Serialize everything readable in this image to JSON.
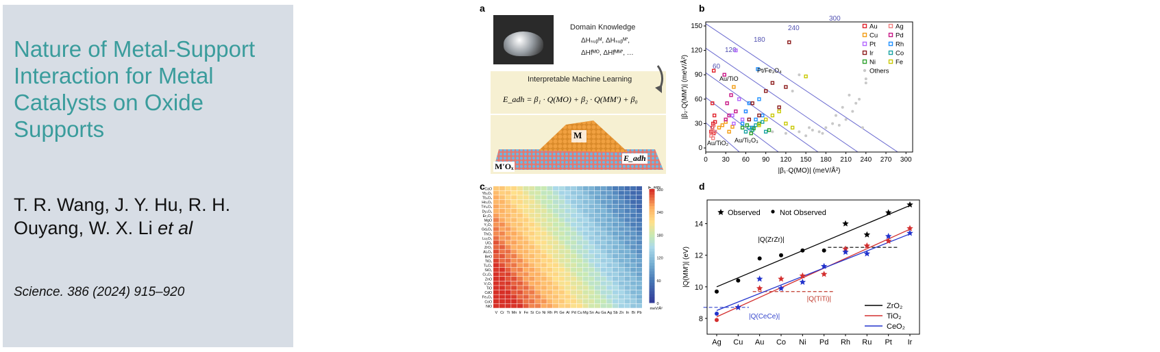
{
  "slide": {
    "title": "Nature of Metal-Support Interaction for Metal Catalysts on Oxide Supports",
    "authors_main": "T. R. Wang, J. Y. Hu, R. H. Ouyang, W. X. Li",
    "authors_etal": "et al",
    "citation": "Science. 386 (2024) 915–920"
  },
  "panel_a": {
    "label": "a",
    "domain_knowledge": "Domain Knowledge",
    "formula_line1": "ΔHₛᵤᵦᴹ, ΔHₛᵤᵦᴹʹ,",
    "formula_line2": "ΔHfᴹᴼ, ΔHfᴹᴹʹ, …",
    "iml": "Interpretable Machine Learning",
    "equation": "E_adh = β₁ · Q(MO) + β₂ · Q(MM′) + β₀",
    "metal_label": "M",
    "support_label": "M′Oₓ",
    "eadh_label": "E_adh"
  },
  "panel_b": {
    "label": "b",
    "xlabel": "|β₁·Q(MO)| (meV/Å²)",
    "ylabel": "|β₂·Q(MM′)| (meV/Å²)",
    "xticks": [
      "0",
      "30",
      "60",
      "90",
      "120",
      "150",
      "180",
      "210",
      "240",
      "270",
      "300"
    ],
    "yticks": [
      "0",
      "30",
      "60",
      "90",
      "120",
      "150"
    ],
    "contours": [
      "60",
      "120",
      "180",
      "240",
      "300"
    ],
    "annotations": [
      "Au/TiO",
      "Pt/Fe₃O₄",
      "Au/TiO₂",
      "Au/Ti₂O₃"
    ],
    "legend": [
      {
        "name": "Au",
        "color": "#e0202a"
      },
      {
        "name": "Ag",
        "color": "#f08080"
      },
      {
        "name": "Cu",
        "color": "#f39c12"
      },
      {
        "name": "Pd",
        "color": "#c71585"
      },
      {
        "name": "Pt",
        "color": "#b266ff"
      },
      {
        "name": "Rh",
        "color": "#1e90ff"
      },
      {
        "name": "Ir",
        "color": "#8b1a1a"
      },
      {
        "name": "Co",
        "color": "#17a2a2"
      },
      {
        "name": "Ni",
        "color": "#2ca02c"
      },
      {
        "name": "Fe",
        "color": "#c8c800"
      },
      {
        "name": "Others",
        "color": "#c8c8c8"
      }
    ]
  },
  "panel_c": {
    "label": "c",
    "rows": [
      "CaO",
      "Yb₂O₃",
      "Tb₂O₃",
      "Ho₂O₃",
      "Tm₂O₃",
      "Dy₂O₃",
      "Er₂O₃",
      "MgO",
      "Y₂O₃",
      "Gd₂O₃",
      "ThO₂",
      "Lu₂O₃",
      "UO₂",
      "ZrO₂",
      "Al₂O₃",
      "BeO",
      "TiO₂",
      "Ti₂O₃",
      "SiO₂",
      "Cr₂O₃",
      "ZnO",
      "V₂O₃",
      "TiO",
      "CdO",
      "Fe₃O₄",
      "CoO",
      "NiO"
    ],
    "cols": [
      "V",
      "Cr",
      "Ti",
      "Mn",
      "Ir",
      "Fe",
      "Si",
      "Co",
      "Ni",
      "Rh",
      "Pt",
      "Ge",
      "Al",
      "Pd",
      "Cu",
      "Mg",
      "Sn",
      "Au",
      "Ga",
      "Ag",
      "Sb",
      "Zn",
      "In",
      "Bi",
      "Pb"
    ],
    "colorbar_title": "|E_adh|",
    "colorbar_unit": "meV/Å²",
    "colorbar_ticks": [
      "300",
      "240",
      "180",
      "120",
      "60",
      "0"
    ]
  },
  "panel_d": {
    "label": "d",
    "ylabel": "|Q(MM′)| (eV)",
    "yticks": [
      "8",
      "10",
      "12",
      "14"
    ],
    "legend_observed": "Observed",
    "legend_not_observed": "Not Observed",
    "annot_zr": "|Q(ZrZr)|",
    "annot_ti": "|Q(TiTi)|",
    "annot_ce": "|Q(CeCe)|"
  },
  "chart_data": [
    {
      "type": "scatter",
      "title": "",
      "xlabel": "|β₁·Q(MO)| (meV/Å²)",
      "ylabel": "|β₂·Q(MM′)| (meV/Å²)",
      "xlim": [
        0,
        310
      ],
      "ylim": [
        -5,
        155
      ],
      "grid": false,
      "legend_position": "top-right",
      "contour_levels": [
        60,
        120,
        180,
        240,
        300
      ],
      "series": [
        {
          "name": "Au",
          "points": [
            [
              10,
              55
            ],
            [
              12,
              95
            ],
            [
              11,
              30
            ],
            [
              10,
              25
            ],
            [
              14,
              32
            ],
            [
              8,
              20
            ],
            [
              13,
              40
            ],
            [
              12,
              18
            ]
          ]
        },
        {
          "name": "Ag",
          "points": [
            [
              8,
              15
            ],
            [
              10,
              22
            ],
            [
              12,
              28
            ],
            [
              14,
              20
            ],
            [
              9,
              18
            ],
            [
              11,
              12
            ]
          ]
        },
        {
          "name": "Cu",
          "points": [
            [
              20,
              25
            ],
            [
              25,
              28
            ],
            [
              30,
              32
            ],
            [
              35,
              20
            ],
            [
              40,
              26
            ],
            [
              42,
              75
            ]
          ]
        },
        {
          "name": "Pd",
          "points": [
            [
              28,
              90
            ],
            [
              32,
              55
            ],
            [
              35,
              40
            ],
            [
              38,
              65
            ],
            [
              45,
              45
            ],
            [
              30,
              35
            ]
          ]
        },
        {
          "name": "Pt",
          "points": [
            [
              40,
              40
            ],
            [
              45,
              120
            ],
            [
              50,
              60
            ],
            [
              55,
              35
            ],
            [
              42,
              30
            ],
            [
              60,
              45
            ]
          ]
        },
        {
          "name": "Rh",
          "points": [
            [
              55,
              30
            ],
            [
              60,
              45
            ],
            [
              65,
              55
            ],
            [
              70,
              25
            ],
            [
              75,
              35
            ],
            [
              80,
              60
            ],
            [
              78,
              97
            ],
            [
              85,
              40
            ]
          ]
        },
        {
          "name": "Ir",
          "points": [
            [
              65,
              35
            ],
            [
              70,
              55
            ],
            [
              80,
              40
            ],
            [
              90,
              70
            ],
            [
              100,
              80
            ],
            [
              110,
              50
            ],
            [
              125,
              130
            ],
            [
              120,
              75
            ]
          ]
        },
        {
          "name": "Co",
          "points": [
            [
              60,
              20
            ],
            [
              65,
              25
            ],
            [
              70,
              22
            ],
            [
              75,
              28
            ],
            [
              85,
              32
            ],
            [
              90,
              20
            ]
          ]
        },
        {
          "name": "Ni",
          "points": [
            [
              55,
              25
            ],
            [
              62,
              28
            ],
            [
              68,
              18
            ],
            [
              72,
              24
            ],
            [
              80,
              30
            ],
            [
              95,
              22
            ]
          ]
        },
        {
          "name": "Fe",
          "points": [
            [
              80,
              28
            ],
            [
              90,
              35
            ],
            [
              100,
              40
            ],
            [
              110,
              45
            ],
            [
              120,
              30
            ],
            [
              130,
              25
            ],
            [
              150,
              88
            ]
          ]
        },
        {
          "name": "Others",
          "points": [
            [
              100,
              20
            ],
            [
              120,
              18
            ],
            [
              140,
              20
            ],
            [
              160,
              22
            ],
            [
              180,
              25
            ],
            [
              200,
              28
            ],
            [
              210,
              35
            ],
            [
              220,
              45
            ],
            [
              230,
              60
            ],
            [
              240,
              80
            ],
            [
              240,
              85
            ],
            [
              235,
              25
            ],
            [
              150,
              15
            ],
            [
              170,
              20
            ],
            [
              190,
              30
            ],
            [
              205,
              50
            ],
            [
              215,
              65
            ],
            [
              225,
              55
            ],
            [
              130,
              70
            ],
            [
              140,
              90
            ],
            [
              155,
              25
            ],
            [
              195,
              40
            ],
            [
              175,
              18
            ]
          ]
        }
      ]
    },
    {
      "type": "heatmap",
      "title": "",
      "rows": [
        "CaO",
        "Yb₂O₃",
        "Tb₂O₃",
        "Ho₂O₃",
        "Tm₂O₃",
        "Dy₂O₃",
        "Er₂O₃",
        "MgO",
        "Y₂O₃",
        "Gd₂O₃",
        "ThO₂",
        "Lu₂O₃",
        "UO₂",
        "ZrO₂",
        "Al₂O₃",
        "BeO",
        "TiO₂",
        "Ti₂O₃",
        "SiO₂",
        "Cr₂O₃",
        "ZnO",
        "V₂O₃",
        "TiO",
        "CdO",
        "Fe₃O₄",
        "CoO",
        "NiO"
      ],
      "cols": [
        "V",
        "Cr",
        "Ti",
        "Mn",
        "Ir",
        "Fe",
        "Si",
        "Co",
        "Ni",
        "Rh",
        "Pt",
        "Ge",
        "Al",
        "Pd",
        "Cu",
        "Mg",
        "Sn",
        "Au",
        "Ga",
        "Ag",
        "Sb",
        "Zn",
        "In",
        "Bi",
        "Pb"
      ],
      "value_range": [
        0,
        300
      ],
      "trend": "values decrease from left columns to right columns and increase from top rows to bottom rows"
    },
    {
      "type": "scatter",
      "title": "",
      "ylabel": "|Q(MM′)| (eV)",
      "categories": [
        "Ag",
        "Cu",
        "Au",
        "Co",
        "Ni",
        "Pd",
        "Rh",
        "Ru",
        "Pt",
        "Ir"
      ],
      "ylim": [
        7,
        15.5
      ],
      "reference_lines": [
        {
          "name": "|Q(ZrZr)|",
          "value": 12.5,
          "color": "#000000"
        },
        {
          "name": "|Q(TiTi)|",
          "value": 9.7,
          "color": "#c0392b"
        },
        {
          "name": "|Q(CeCe)|",
          "value": 8.7,
          "color": "#3344cc"
        }
      ],
      "series": [
        {
          "name": "ZrO₂",
          "color": "#000000",
          "values": [
            9.7,
            10.4,
            11.8,
            12.0,
            12.3,
            12.3,
            14.0,
            13.3,
            14.7,
            15.2
          ],
          "observed": [
            false,
            false,
            false,
            false,
            false,
            false,
            true,
            true,
            true,
            true
          ]
        },
        {
          "name": "TiO₂",
          "color": "#d32f2f",
          "values": [
            7.9,
            8.7,
            9.9,
            10.5,
            10.7,
            10.8,
            12.4,
            12.6,
            12.9,
            13.7
          ],
          "observed": [
            false,
            true,
            true,
            true,
            true,
            true,
            true,
            true,
            true,
            true
          ]
        },
        {
          "name": "CeO₂",
          "color": "#2233cc",
          "values": [
            8.3,
            8.7,
            10.5,
            9.9,
            10.3,
            11.3,
            12.2,
            12.1,
            13.2,
            13.4
          ],
          "observed": [
            false,
            true,
            true,
            true,
            true,
            true,
            true,
            true,
            true,
            true
          ]
        }
      ]
    }
  ]
}
